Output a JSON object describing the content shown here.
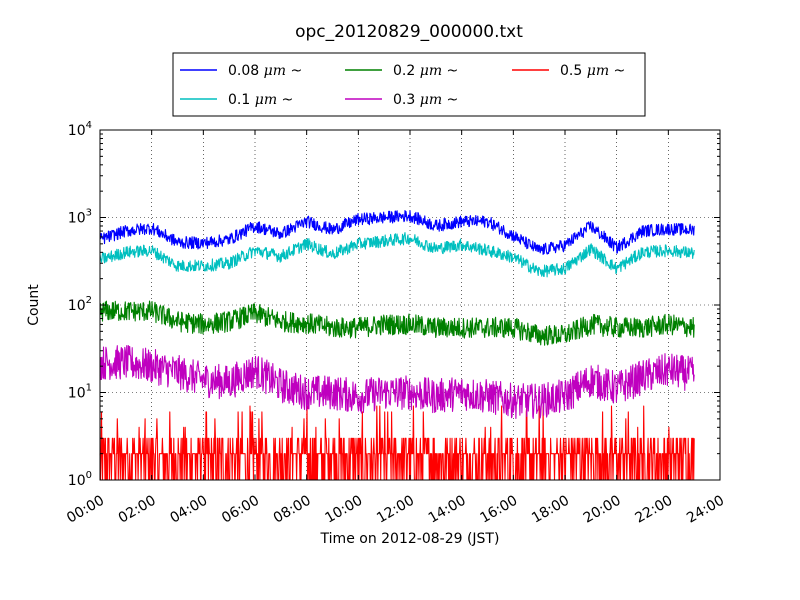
{
  "chart_data": {
    "type": "line",
    "title": "opc_20120829_000000.txt",
    "xlabel": "Time on 2012-08-29 (JST)",
    "ylabel": "Count",
    "yscale": "log",
    "ylim": [
      1,
      10000
    ],
    "xlim": [
      "00:00",
      "24:00"
    ],
    "grid": true,
    "grid_style": "dotted",
    "legend_position": "top-center",
    "x_tick_labels": [
      "00:00",
      "02:00",
      "04:00",
      "06:00",
      "08:00",
      "10:00",
      "12:00",
      "14:00",
      "16:00",
      "18:00",
      "20:00",
      "22:00",
      "24:00"
    ],
    "y_tick_labels": [
      {
        "base": "10",
        "exp": "0"
      },
      {
        "base": "10",
        "exp": "1"
      },
      {
        "base": "10",
        "exp": "2"
      },
      {
        "base": "10",
        "exp": "3"
      },
      {
        "base": "10",
        "exp": "4"
      }
    ],
    "x_hours": [
      0,
      1,
      2,
      3,
      4,
      5,
      6,
      7,
      8,
      9,
      10,
      11,
      12,
      13,
      14,
      15,
      16,
      17,
      18,
      19,
      20,
      21,
      22,
      23
    ],
    "series": [
      {
        "name": "0.08 μm ~",
        "label_prefix": "0.08 ",
        "unit": "μm",
        "suffix": "~",
        "color": "#0000ff",
        "values": [
          560,
          700,
          760,
          520,
          510,
          560,
          800,
          650,
          900,
          720,
          950,
          1000,
          1050,
          800,
          900,
          900,
          620,
          420,
          480,
          800,
          450,
          700,
          740,
          720
        ]
      },
      {
        "name": "0.1 μm ~",
        "label_prefix": "0.1 ",
        "unit": "μm",
        "suffix": "~",
        "color": "#00bfbf",
        "values": [
          330,
          400,
          420,
          280,
          280,
          300,
          420,
          360,
          500,
          380,
          500,
          540,
          580,
          440,
          490,
          420,
          350,
          240,
          260,
          440,
          260,
          400,
          420,
          390
        ]
      },
      {
        "name": "0.2 μm ~",
        "label_prefix": "0.2 ",
        "unit": "μm",
        "suffix": "~",
        "color": "#008000",
        "values": [
          85,
          85,
          85,
          65,
          60,
          65,
          80,
          65,
          62,
          55,
          55,
          60,
          60,
          55,
          55,
          55,
          55,
          45,
          45,
          60,
          55,
          55,
          60,
          55
        ]
      },
      {
        "name": "0.3 μm ~",
        "label_prefix": "0.3 ",
        "unit": "μm",
        "suffix": "~",
        "color": "#bf00bf",
        "values": [
          22,
          22,
          20,
          17,
          14,
          13,
          18,
          12,
          10,
          10,
          9,
          10,
          10,
          9,
          10,
          9,
          8,
          8,
          9,
          14,
          11,
          15,
          18,
          16
        ]
      },
      {
        "name": "0.5 μm ~",
        "label_prefix": "0.5 ",
        "unit": "μm",
        "suffix": "~",
        "color": "#ff0000",
        "values": [
          1.8,
          1.9,
          1.9,
          1.7,
          1.6,
          1.6,
          1.8,
          1.6,
          1.5,
          1.5,
          1.5,
          1.5,
          1.5,
          1.5,
          1.5,
          1.5,
          1.4,
          1.4,
          1.5,
          1.6,
          1.5,
          1.6,
          1.7,
          1.6
        ]
      }
    ]
  }
}
